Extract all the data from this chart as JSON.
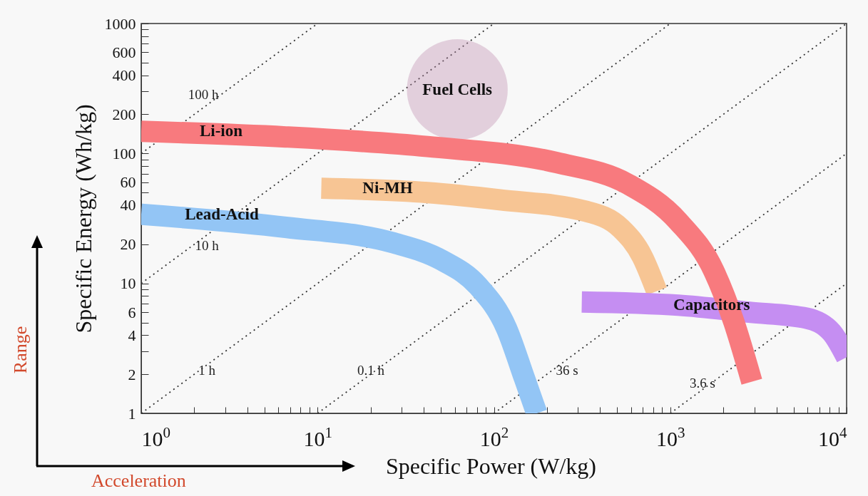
{
  "chart_data": {
    "type": "line",
    "xlabel": "Specific Power (W/kg)",
    "ylabel": "Specific Energy (Wh/kg)",
    "log": "xy",
    "grid": false,
    "xlim": [
      1,
      10000
    ],
    "ylim": [
      1,
      1000
    ],
    "xticks": [
      {
        "value": 1,
        "label": "10$^{0}$"
      },
      {
        "value": 2,
        "label": null
      },
      {
        "value": 3,
        "label": null
      },
      {
        "value": 4,
        "label": null
      },
      {
        "value": 5,
        "label": null
      },
      {
        "value": 6,
        "label": null
      },
      {
        "value": 7,
        "label": null
      },
      {
        "value": 8,
        "label": null
      },
      {
        "value": 9,
        "label": null
      },
      {
        "value": 10,
        "label": "10$^{1}$"
      },
      {
        "value": 20,
        "label": null
      },
      {
        "value": 30,
        "label": null
      },
      {
        "value": 40,
        "label": null
      },
      {
        "value": 50,
        "label": null
      },
      {
        "value": 60,
        "label": null
      },
      {
        "value": 70,
        "label": null
      },
      {
        "value": 80,
        "label": null
      },
      {
        "value": 90,
        "label": null
      },
      {
        "value": 100,
        "label": "10$^{2}$"
      },
      {
        "value": 200,
        "label": null
      },
      {
        "value": 300,
        "label": null
      },
      {
        "value": 400,
        "label": null
      },
      {
        "value": 500,
        "label": null
      },
      {
        "value": 600,
        "label": null
      },
      {
        "value": 700,
        "label": null
      },
      {
        "value": 800,
        "label": null
      },
      {
        "value": 900,
        "label": null
      },
      {
        "value": 1000,
        "label": "10$^{3}$"
      },
      {
        "value": 2000,
        "label": null
      },
      {
        "value": 3000,
        "label": null
      },
      {
        "value": 4000,
        "label": null
      },
      {
        "value": 5000,
        "label": null
      },
      {
        "value": 6000,
        "label": null
      },
      {
        "value": 7000,
        "label": null
      },
      {
        "value": 8000,
        "label": null
      },
      {
        "value": 9000,
        "label": null
      },
      {
        "value": 10000,
        "label": "10$^{4}$"
      }
    ],
    "yticks": [
      1,
      2,
      {
        "value": 3,
        "label": null
      },
      4,
      {
        "value": 5,
        "label": null
      },
      6,
      {
        "value": 7,
        "label": null
      },
      {
        "value": 8,
        "label": null
      },
      {
        "value": 9,
        "label": null
      },
      10,
      20,
      {
        "value": 30,
        "label": null
      },
      40,
      {
        "value": 50,
        "label": null
      },
      60,
      {
        "value": 70,
        "label": null
      },
      {
        "value": 80,
        "label": null
      },
      {
        "value": 90,
        "label": null
      },
      100,
      200,
      {
        "value": 300,
        "label": null
      },
      400,
      {
        "value": 500,
        "label": null
      },
      600,
      {
        "value": 700,
        "label": null
      },
      {
        "value": 800,
        "label": null
      },
      {
        "value": 900,
        "label": null
      },
      1000
    ],
    "series": [
      {
        "type": "line",
        "color": "#333333",
        "line_style": "dotted",
        "x": [
          1,
          10
        ],
        "values": [
          100,
          1000
        ]
      },
      {
        "type": "line",
        "color": "#333333",
        "line_style": "dotted",
        "x": [
          1,
          100
        ],
        "values": [
          10,
          1000
        ]
      },
      {
        "type": "line",
        "color": "#333333",
        "line_style": "dotted",
        "x": [
          1,
          1000
        ],
        "values": [
          1,
          1000
        ]
      },
      {
        "type": "line",
        "color": "#333333",
        "line_style": "dotted",
        "x": [
          10,
          10000
        ],
        "values": [
          1,
          1000
        ]
      },
      {
        "type": "line",
        "color": "#333333",
        "line_style": "dotted",
        "x": [
          100,
          10000
        ],
        "values": [
          1,
          100
        ]
      },
      {
        "type": "line",
        "color": "#333333",
        "line_style": "dotted",
        "x": [
          1000,
          10000
        ],
        "values": [
          1,
          10
        ]
      },
      {
        "type": "scatter",
        "name": "Fuel Cells",
        "color": "#b983a8",
        "marker": "circle",
        "x": [
          62
        ],
        "values": [
          310
        ]
      },
      {
        "type": "line",
        "name": "Lead-Acid",
        "color": "#93c5f5",
        "line_style": "solid",
        "x": [
          1,
          6.6,
          26.6,
          51,
          81,
          118,
          149,
          175
        ],
        "values": [
          34,
          27,
          20.6,
          15,
          9.6,
          4.5,
          1.86,
          1
        ]
      },
      {
        "type": "line",
        "name": "Ni-MH",
        "color": "#f7c594",
        "line_style": "solid",
        "x": [
          10.5,
          42,
          108,
          330,
          525,
          695,
          838
        ],
        "values": [
          54,
          50,
          44,
          36,
          26.5,
          16,
          8.7
        ]
      },
      {
        "type": "line",
        "name": "Capacitors",
        "color": "#c58ef2",
        "line_style": "solid",
        "x": [
          315,
          1110,
          2810,
          5930,
          8220,
          10000
        ],
        "values": [
          7.2,
          6.8,
          6,
          5.4,
          4.2,
          2.7
        ]
      },
      {
        "type": "line",
        "name": "Li-ion",
        "color": "#f87a7e",
        "line_style": "solid",
        "x": [
          1,
          6.6,
          42,
          227,
          577,
          1110,
          1770,
          2300,
          2900
        ],
        "values": [
          148,
          134,
          113,
          85,
          58,
          30,
          12.4,
          5,
          1.75
        ]
      }
    ],
    "annotations": [
      "100 h",
      "10 h",
      "1 h",
      "0.1 h",
      "36 s",
      "3.6 s",
      "Range",
      "Acceleration"
    ]
  }
}
